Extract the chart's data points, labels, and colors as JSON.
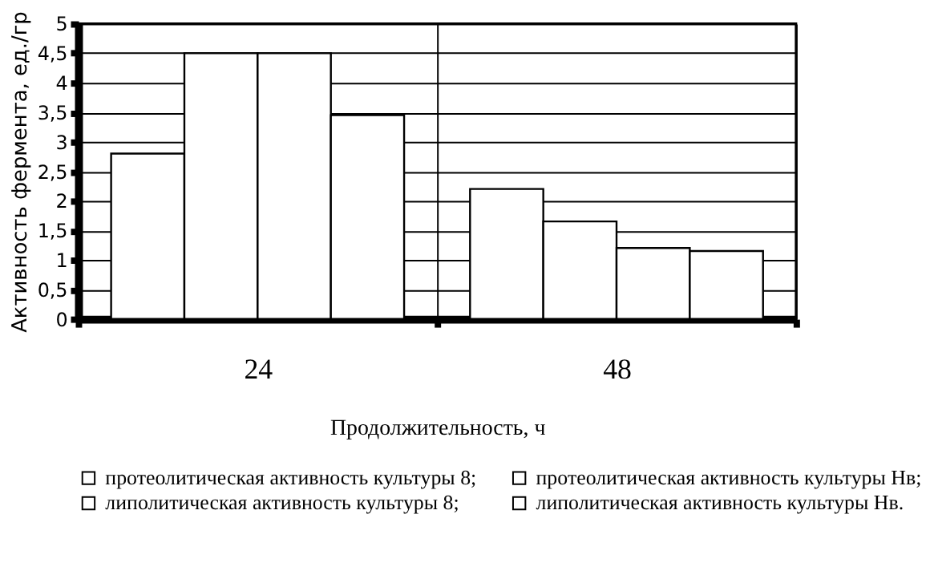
{
  "chart_data": {
    "type": "bar",
    "xlabel": "Продолжительность, ч",
    "ylabel": "Активность фермента, ед./гр",
    "categories": [
      "24",
      "48"
    ],
    "series": [
      {
        "name": "протеолитическая активность культуры 8;",
        "color": "#ffffff",
        "values": [
          2.8,
          2.2
        ]
      },
      {
        "name": "протеолитическая активность культуры Нв;",
        "color": "#ffffff",
        "values": [
          4.5,
          1.65
        ]
      },
      {
        "name": "липолитическая активность культуры 8;",
        "color": "#ffffff",
        "values": [
          4.5,
          1.2
        ]
      },
      {
        "name": "липолитическая активность культуры Нв.",
        "color": "#ffffff",
        "values": [
          3.45,
          1.15
        ]
      }
    ],
    "ylim": [
      0,
      5
    ],
    "yticks": [
      0,
      {
        "value": 0.5,
        "label": "0,5"
      },
      1,
      {
        "value": 1.5,
        "label": "1,5"
      },
      2,
      {
        "value": 2.5,
        "label": "2,5"
      },
      3,
      {
        "value": 3.5,
        "label": "3,5"
      },
      4,
      {
        "value": 4.5,
        "label": "4,5"
      },
      5
    ],
    "grid": true,
    "legend": "bottom"
  }
}
